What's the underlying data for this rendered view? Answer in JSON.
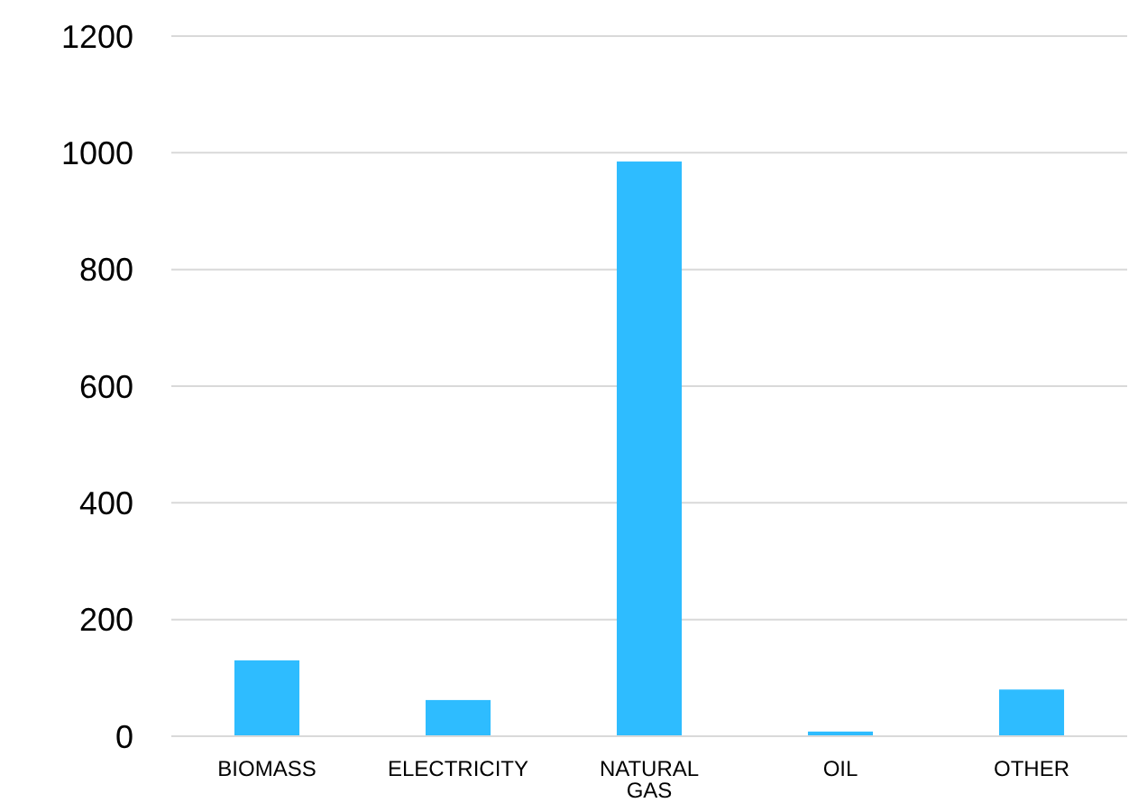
{
  "chart_data": {
    "type": "bar",
    "categories": [
      "BIOMASS",
      "ELECTRICITY",
      "NATURAL GAS",
      "OIL",
      "OTHER"
    ],
    "values": [
      130,
      62,
      985,
      8,
      80
    ],
    "color": "#2ebcff",
    "ylim": [
      0,
      1200
    ],
    "yticks": [
      0,
      200,
      400,
      600,
      800,
      1000,
      1200
    ],
    "grid": "y"
  }
}
